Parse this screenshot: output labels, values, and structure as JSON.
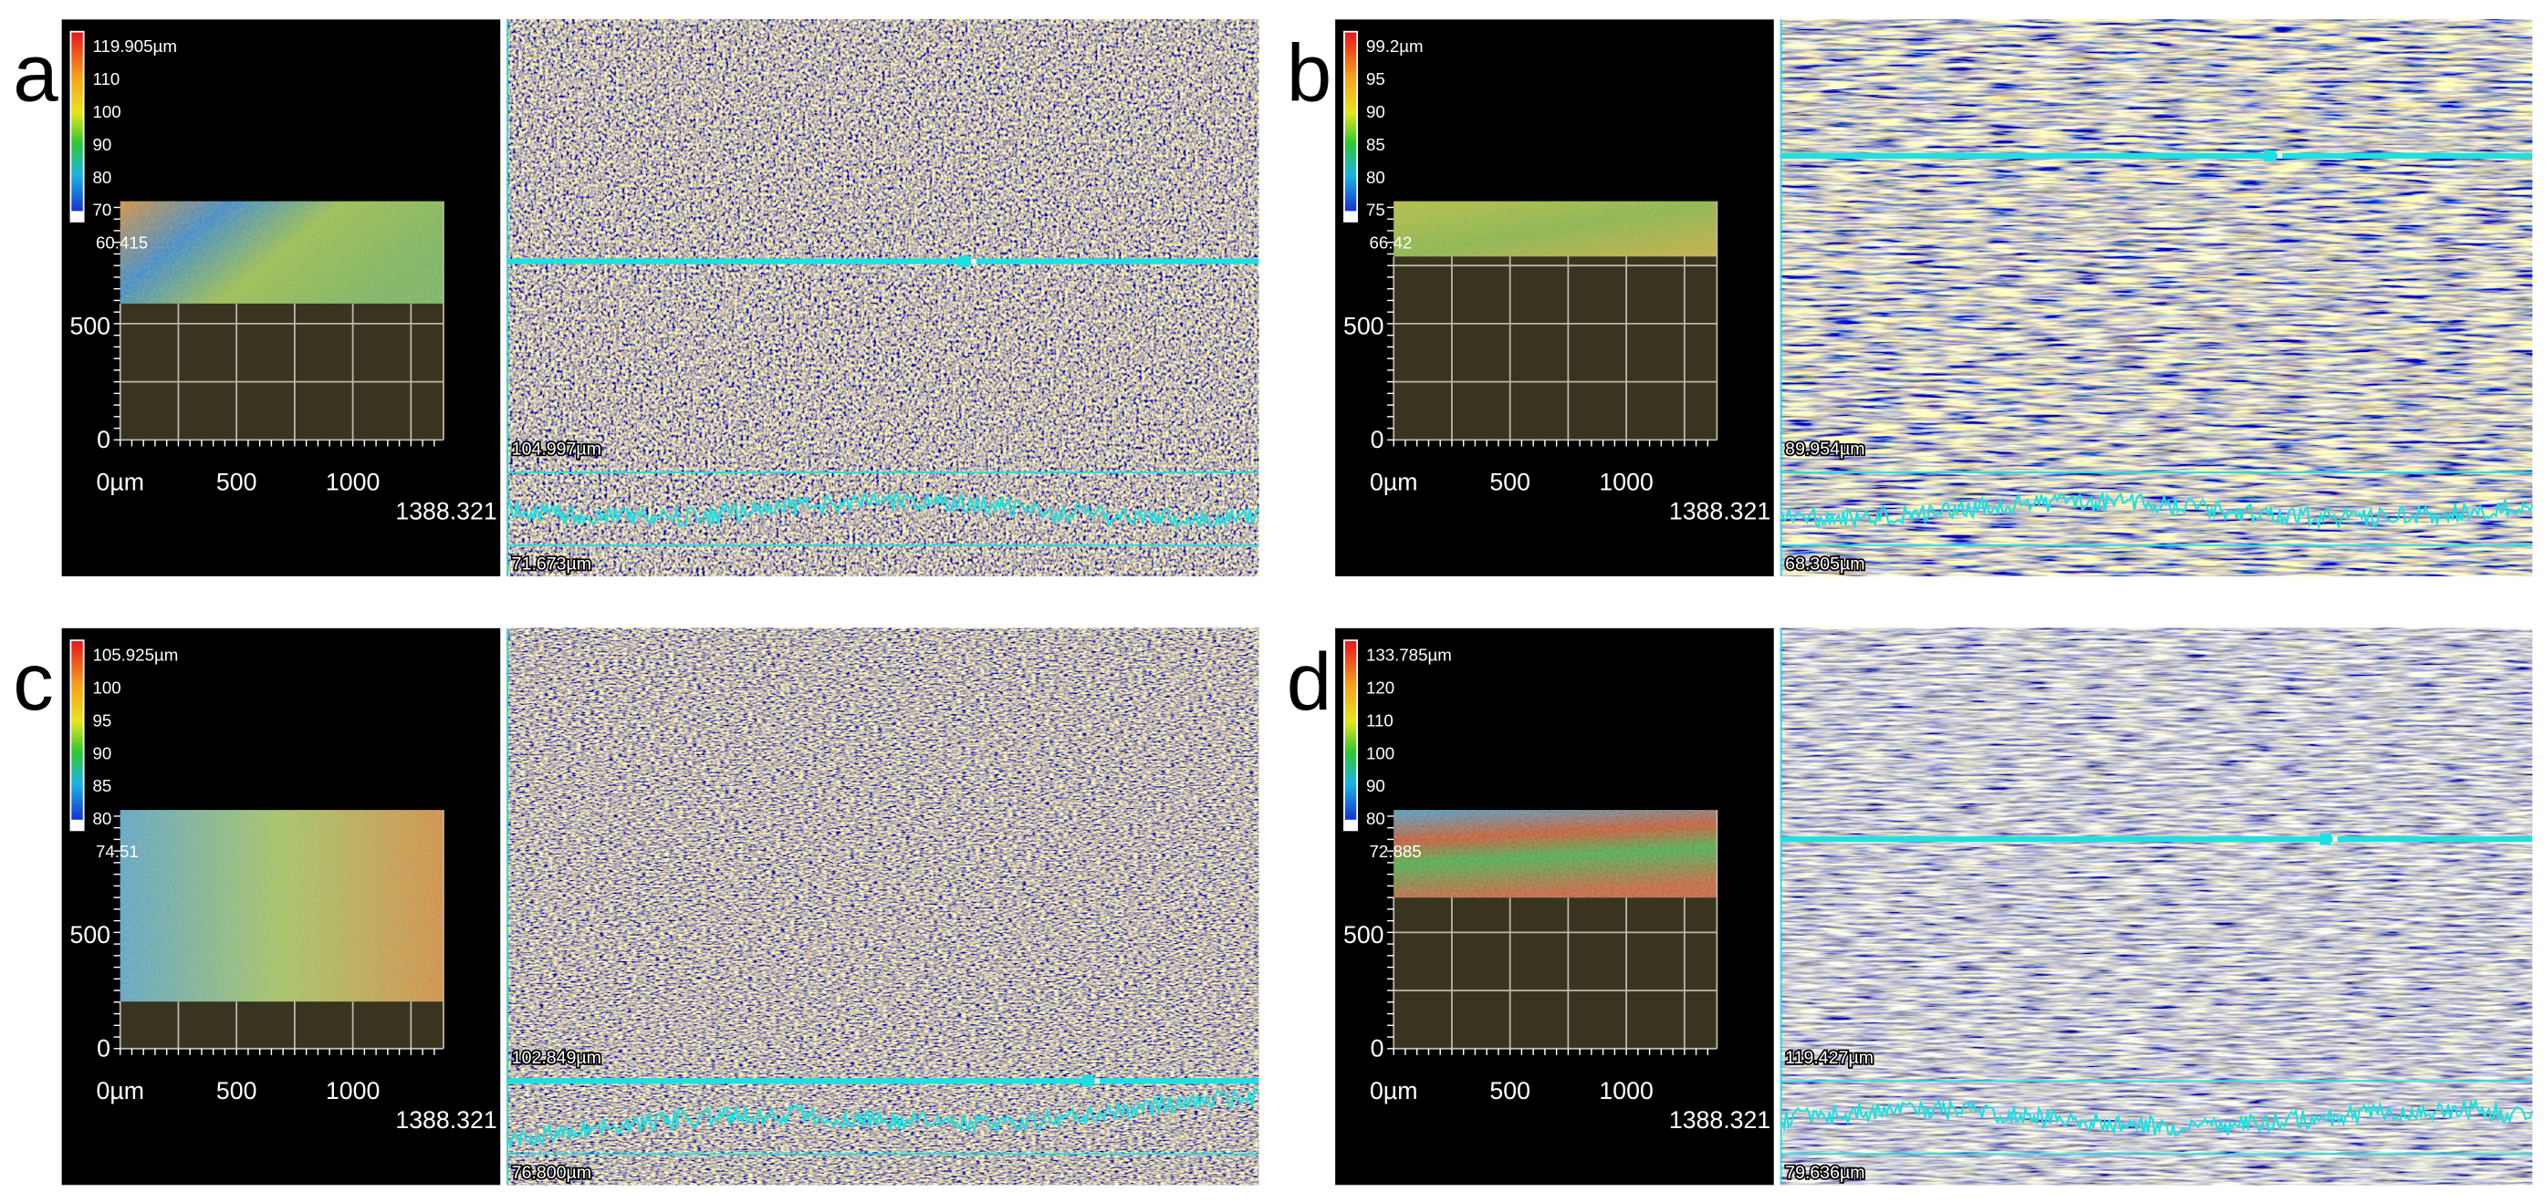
{
  "panels": [
    {
      "label": "a",
      "colorbar_labels": [
        "119.905µm",
        "110",
        "100",
        "90",
        "80",
        "70"
      ],
      "min_label": "60.415",
      "y_axis_labels": [
        "500",
        "0"
      ],
      "x_axis_labels": [
        "0µm",
        "500",
        "1000"
      ],
      "x_extent_label": "1388.321",
      "profile_max": "104.997µm",
      "profile_min": "71.673µm"
    },
    {
      "label": "b",
      "colorbar_labels": [
        "99.2µm",
        "95",
        "90",
        "85",
        "80",
        "75"
      ],
      "min_label": "66.42",
      "y_axis_labels": [
        "500",
        "0"
      ],
      "x_axis_labels": [
        "0µm",
        "500",
        "1000"
      ],
      "x_extent_label": "1388.321",
      "profile_max": "89.954µm",
      "profile_min": "68.305µm"
    },
    {
      "label": "c",
      "colorbar_labels": [
        "105.925µm",
        "100",
        "95",
        "90",
        "85",
        "80"
      ],
      "min_label": "74.51",
      "y_axis_labels": [
        "500",
        "0"
      ],
      "x_axis_labels": [
        "0µm",
        "500",
        "1000"
      ],
      "x_extent_label": "1388.321",
      "profile_max": "102.849µm",
      "profile_min": "76.800µm"
    },
    {
      "label": "d",
      "colorbar_labels": [
        "133.785µm",
        "120",
        "110",
        "100",
        "90",
        "80"
      ],
      "min_label": "72.885",
      "y_axis_labels": [
        "500",
        "0"
      ],
      "x_axis_labels": [
        "0µm",
        "500",
        "1000"
      ],
      "x_extent_label": "1388.321",
      "profile_max": "119.427µm",
      "profile_min": "79.636µm"
    }
  ]
}
